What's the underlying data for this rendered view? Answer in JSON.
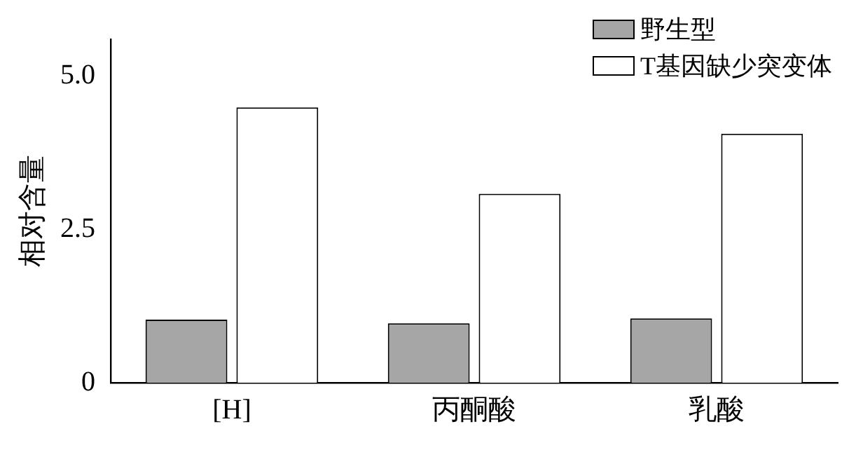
{
  "chart_data": {
    "type": "bar",
    "ylabel": "相对含量",
    "categories": [
      "[H]",
      "丙酮酸",
      "乳酸"
    ],
    "series": [
      {
        "name": "野生型",
        "color": "#a6a6a6",
        "values": [
          1.03,
          0.97,
          1.05
        ]
      },
      {
        "name": "T基因缺少突变体",
        "color": "#ffffff",
        "values": [
          4.49,
          3.08,
          4.06
        ]
      }
    ],
    "ylim": [
      0,
      5.6
    ],
    "yticks": [
      0,
      {
        "value": 2.5,
        "label": "2.5"
      },
      {
        "value": 5,
        "label": "5.0"
      }
    ],
    "grid": false,
    "legend": "top right"
  }
}
